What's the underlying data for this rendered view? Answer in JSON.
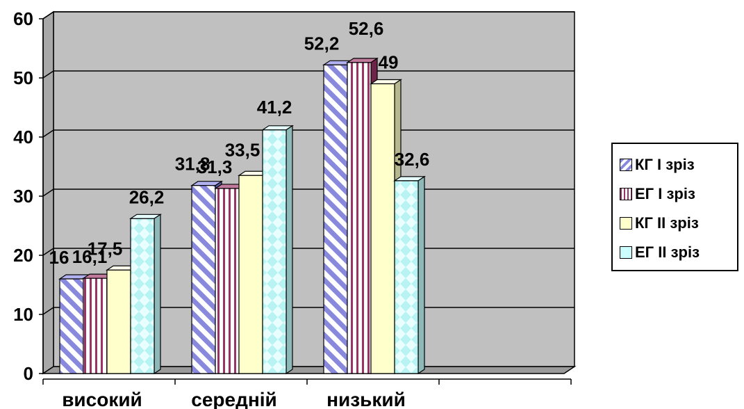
{
  "chart_data": {
    "type": "bar",
    "categories": [
      "високий",
      "середній",
      "низький"
    ],
    "series": [
      {
        "name": "КГ І зріз",
        "values": [
          16,
          31.8,
          52.2
        ],
        "labels": [
          "16",
          "31,8",
          "52,2"
        ],
        "color": "#8888dd",
        "pattern": "diagonal-stripes"
      },
      {
        "name": "ЕГ І зріз",
        "values": [
          16.1,
          31.3,
          52.6
        ],
        "labels": [
          "16,1",
          "31,3",
          "52,6"
        ],
        "color": "#993366",
        "pattern": "vertical-stripes"
      },
      {
        "name": "КГ ІІ зріз",
        "values": [
          17.5,
          33.5,
          49
        ],
        "labels": [
          "17,5",
          "33,5",
          "49"
        ],
        "color": "#ffffcc",
        "pattern": "solid"
      },
      {
        "name": "ЕГ ІІ зріз",
        "values": [
          26.2,
          41.2,
          32.6
        ],
        "labels": [
          "26,2",
          "41,2",
          "32,6"
        ],
        "color": "#ccffff",
        "pattern": "diamonds"
      }
    ],
    "ylim": [
      0,
      60
    ],
    "yticks": [
      "0",
      "10",
      "20",
      "30",
      "40",
      "50",
      "60"
    ],
    "grid": true,
    "legend_position": "right",
    "plot_background": "#c0c0c0",
    "style": "3d-clustered-column"
  }
}
